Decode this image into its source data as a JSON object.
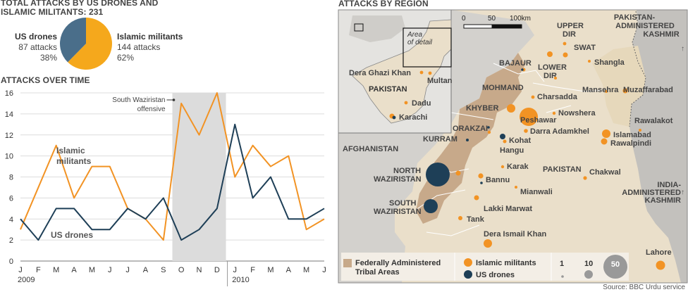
{
  "pie": {
    "title_line1": "TOTAL ATTACKS BY US DRONES AND",
    "title_line2": "ISLAMIC MILITANTS: 231",
    "us": {
      "label": "US drones",
      "count": "87 attacks",
      "pct": "38%",
      "value": 87,
      "color": "#4a6e8a"
    },
    "mil": {
      "label": "Islamic militants",
      "count": "144 attacks",
      "pct": "62%",
      "value": 144,
      "color": "#f5a81c"
    }
  },
  "chart_data": [
    {
      "type": "line",
      "title": "ATTACKS OVER TIME",
      "x": [
        "J",
        "F",
        "M",
        "A",
        "M",
        "J",
        "J",
        "A",
        "S",
        "O",
        "N",
        "D",
        "J",
        "F",
        "M",
        "A",
        "M",
        "J"
      ],
      "year_labels": [
        "2009",
        "2010"
      ],
      "series": [
        {
          "name": "Islamic militants",
          "label_line1": "Islamic",
          "label_line2": "militants",
          "color": "#f29324",
          "values": [
            3,
            7,
            11,
            6,
            9,
            9,
            5,
            4,
            2,
            15,
            12,
            16,
            8,
            11,
            9,
            10,
            3,
            4
          ]
        },
        {
          "name": "US drones",
          "color": "#1e3f57",
          "values": [
            4,
            2,
            5,
            5,
            3,
            3,
            5,
            4,
            6,
            2,
            3,
            5,
            13,
            6,
            8,
            4,
            4,
            5
          ]
        }
      ],
      "ylim": [
        0,
        16
      ],
      "yticks": [
        "0",
        "2",
        "4",
        "6",
        "8",
        "10",
        "12",
        "14",
        "16"
      ],
      "shaded_period": {
        "from_index": 9,
        "to_index": 11,
        "label_line1": "South Waziristan",
        "label_line2": "offensive"
      }
    },
    {
      "type": "map",
      "title": "ATTACKS BY REGION",
      "scale": {
        "zero": "0",
        "mid": "50",
        "end": "100km"
      },
      "inset": {
        "area_label_1": "Area",
        "area_label_2": "of detail",
        "places": [
          "Dera Ghazi Khan",
          "Multan",
          "PAKISTAN",
          "Dadu",
          "Karachi"
        ]
      },
      "regions": [
        "PAKISTAN-",
        "ADMINISTERED",
        "KASHMIR",
        "AFGHANISTAN",
        "PAKISTAN",
        "INDIA-",
        "ADMINISTERED",
        "KASHMIR"
      ],
      "areas": [
        "UPPER",
        "DIR",
        "SWAT",
        "BAJAUR",
        "LOWER",
        "DIR",
        "MOHMAND",
        "KHYBER",
        "ORAKZAI",
        "KURRAM",
        "NORTH",
        "WAZIRISTAN",
        "SOUTH",
        "WAZIRISTAN"
      ],
      "places": [
        "Shangla",
        "Charsadda",
        "Mansehra",
        "Muzaffarabad",
        "Peshawar",
        "Nowshera",
        "Darra Adamkhel",
        "Kohat",
        "Rawalakot",
        "Islamabad",
        "Rawalpindi",
        "Hangu",
        "Karak",
        "Bannu",
        "Chakwal",
        "Mianwali",
        "Lakki Marwat",
        "Tank",
        "Dera Ismail Khan",
        "Lahore"
      ],
      "legend": {
        "fata_line1": "Federally Administered",
        "fata_line2": "Tribal Areas",
        "militants": "Islamic militants",
        "drones": "US drones",
        "size_1": "1",
        "size_10": "10",
        "size_50": "50"
      }
    }
  ],
  "source": "Source: BBC Urdu service"
}
